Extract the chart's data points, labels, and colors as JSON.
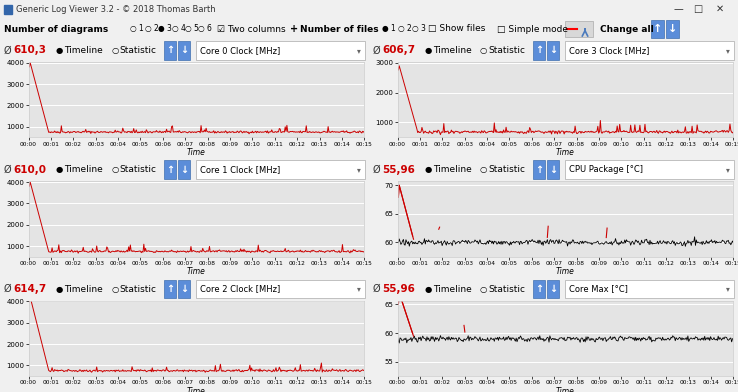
{
  "title_bar": "Generic Log Viewer 3.2 - © 2018 Thomas Barth",
  "panels": [
    {
      "title": "Core 0 Clock [MHz]",
      "avg": "610,3",
      "ymax": 4000,
      "yticks": [
        1000,
        2000,
        3000,
        4000
      ],
      "peak": 4000,
      "steady": 750,
      "color": "#cc0000",
      "is_temp": false
    },
    {
      "title": "Core 3 Clock [MHz]",
      "avg": "606,7",
      "ymax": 3000,
      "yticks": [
        1000,
        2000,
        3000
      ],
      "peak": 2900,
      "steady": 680,
      "color": "#cc0000",
      "is_temp": false
    },
    {
      "title": "Core 1 Clock [MHz]",
      "avg": "610,0",
      "ymax": 4000,
      "yticks": [
        1000,
        2000,
        3000,
        4000
      ],
      "peak": 4000,
      "steady": 750,
      "color": "#cc0000",
      "is_temp": false
    },
    {
      "title": "CPU Package [°C]",
      "avg": "55,96",
      "ymax": 70,
      "yticks": [
        60,
        65,
        70
      ],
      "peak": 70,
      "steady": 60,
      "color": "#cc0000",
      "is_temp": true,
      "black_line": true
    },
    {
      "title": "Core 2 Clock [MHz]",
      "avg": "614,7",
      "ymax": 4000,
      "yticks": [
        1000,
        2000,
        3000,
        4000
      ],
      "peak": 4200,
      "steady": 750,
      "color": "#cc0000",
      "is_temp": false
    },
    {
      "title": "Core Max [°C]",
      "avg": "55,96",
      "ymax": 65,
      "yticks": [
        55,
        60,
        65
      ],
      "peak": 67,
      "steady": 59,
      "color": "#cc0000",
      "is_temp": true,
      "black_line": true
    }
  ],
  "bg_color": "#f0f0f0",
  "panel_bg": "#e4e4e4",
  "white": "#ffffff",
  "blue_btn": "#5b8dd9",
  "title_bar_bg": "#c8c8c8",
  "time_labels": [
    "00:00",
    "00:01",
    "00:02",
    "00:03",
    "00:04",
    "00:05",
    "00:06",
    "00:07",
    "00:08",
    "00:09",
    "00:10",
    "00:11",
    "00:12",
    "00:13",
    "00:14",
    "00:15"
  ]
}
